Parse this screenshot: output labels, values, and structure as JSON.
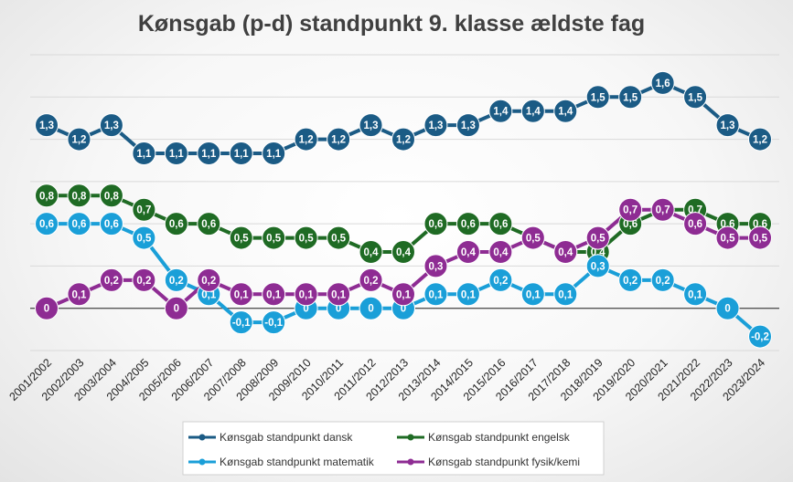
{
  "chart_data": {
    "type": "line",
    "title": "Kønsgab (p-d) standpunkt 9. klasse ældste fag",
    "categories": [
      "2001/2002",
      "2002/2003",
      "2003/2004",
      "2004/2005",
      "2005/2006",
      "2006/2007",
      "2007/2008",
      "2008/2009",
      "2009/2010",
      "2010/2011",
      "2011/2012",
      "2012/2013",
      "2013/2014",
      "2014/2015",
      "2015/2016",
      "2016/2017",
      "2017/2018",
      "2018/2019",
      "2019/2020",
      "2020/2021",
      "2021/2022",
      "2022/2023",
      "2023/2024"
    ],
    "ylim": [
      -0.3,
      1.8
    ],
    "grid": true,
    "legend_position": "bottom",
    "series": [
      {
        "name": "Kønsgab standpunkt dansk",
        "color": "#1b5b85",
        "values": [
          1.3,
          1.2,
          1.3,
          1.1,
          1.1,
          1.1,
          1.1,
          1.1,
          1.2,
          1.2,
          1.3,
          1.2,
          1.3,
          1.3,
          1.4,
          1.4,
          1.4,
          1.5,
          1.5,
          1.6,
          1.5,
          1.3,
          1.2
        ],
        "labels": [
          "1,3",
          "1,2",
          "1,3",
          "1,1",
          "1,1",
          "1,1",
          "1,1",
          "1,1",
          "1,2",
          "1,2",
          "1,3",
          "1,2",
          "1,3",
          "1,3",
          "1,4",
          "1,4",
          "1,4",
          "1,5",
          "1,5",
          "1,6",
          "1,5",
          "1,3",
          "1,2"
        ]
      },
      {
        "name": "Kønsgab standpunkt engelsk",
        "color": "#1f6b24",
        "values": [
          0.8,
          0.8,
          0.8,
          0.7,
          0.6,
          0.6,
          0.5,
          0.5,
          0.5,
          0.5,
          0.4,
          0.4,
          0.6,
          0.6,
          0.6,
          0.5,
          0.4,
          0.4,
          0.6,
          0.7,
          0.7,
          0.6,
          0.6
        ],
        "labels": [
          "0,8",
          "0,8",
          "0,8",
          "0,7",
          "0,6",
          "0,6",
          "0,5",
          "0,5",
          "0,5",
          "0,5",
          "0,4",
          "0,4",
          "0,6",
          "0,6",
          "0,6",
          "0,5",
          "0,4",
          "0,4",
          "0,6",
          "0,7",
          "0,7",
          "0,6",
          "0,6"
        ]
      },
      {
        "name": "Kønsgab standpunkt matematik",
        "color": "#1a9fd8",
        "values": [
          0.6,
          0.6,
          0.6,
          0.5,
          0.2,
          0.1,
          -0.1,
          -0.1,
          0,
          0,
          0,
          0,
          0.1,
          0.1,
          0.2,
          0.1,
          0.1,
          0.3,
          0.2,
          0.2,
          0.1,
          0,
          -0.2
        ],
        "labels": [
          "0,6",
          "0,6",
          "0,6",
          "0,5",
          "0,2",
          "0,1",
          "-0,1",
          "-0,1",
          "0",
          "0",
          "0",
          "0",
          "0,1",
          "0,1",
          "0,2",
          "0,1",
          "0,1",
          "0,3",
          "0,2",
          "0,2",
          "0,1",
          "0",
          "-0,2"
        ]
      },
      {
        "name": "Kønsgab standpunkt fysik/kemi",
        "color": "#8e2c93",
        "values": [
          0,
          0.1,
          0.2,
          0.2,
          0,
          0.2,
          0.1,
          0.1,
          0.1,
          0.1,
          0.2,
          0.1,
          0.3,
          0.4,
          0.4,
          0.5,
          0.4,
          0.5,
          0.7,
          0.7,
          0.6,
          0.5,
          0.5
        ],
        "labels": [
          "0",
          "0,1",
          "0,2",
          "0,2",
          "0",
          "0,2",
          "0,1",
          "0,1",
          "0,1",
          "0,1",
          "0,2",
          "0,1",
          "0,3",
          "0,4",
          "0,4",
          "0,5",
          "0,4",
          "0,5",
          "0,7",
          "0,7",
          "0,6",
          "0,5",
          "0,5"
        ]
      }
    ]
  }
}
